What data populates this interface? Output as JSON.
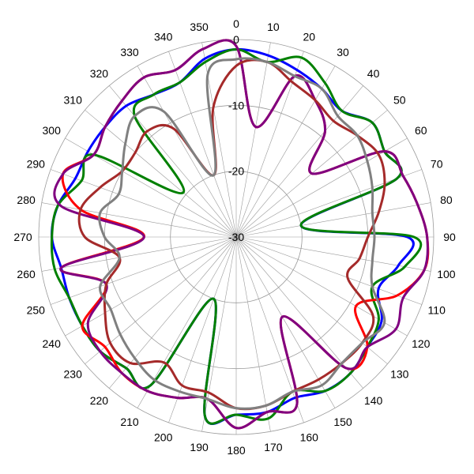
{
  "chart_data": {
    "type": "line",
    "subtype": "polar",
    "title": "",
    "angle_direction": "clockwise",
    "angle_zero": "top",
    "angle_ticks": [
      0,
      10,
      20,
      30,
      40,
      50,
      60,
      70,
      80,
      90,
      100,
      110,
      120,
      130,
      140,
      150,
      160,
      170,
      180,
      190,
      200,
      210,
      220,
      230,
      240,
      250,
      260,
      270,
      280,
      290,
      300,
      310,
      320,
      330,
      340,
      350
    ],
    "angle_tick_labels": [
      "0",
      "10",
      "20",
      "30",
      "40",
      "50",
      "60",
      "70",
      "80",
      "90",
      "100",
      "110",
      "120",
      "130",
      "140",
      "150",
      "160",
      "170",
      "180",
      "190",
      "200",
      "210",
      "220",
      "230",
      "240",
      "250",
      "260",
      "270",
      "280",
      "290",
      "300",
      "310",
      "320",
      "330",
      "340",
      "350"
    ],
    "radial_range": [
      -30,
      0
    ],
    "radial_ticks": [
      -30,
      -20,
      -10,
      0
    ],
    "radial_tick_labels": [
      "-30",
      "-20",
      "-10",
      "0"
    ],
    "grid": true,
    "series": [
      {
        "color": "#0000ff",
        "angles": [
          0,
          10,
          20,
          30,
          40,
          50,
          60,
          70,
          80,
          90,
          100,
          110,
          120,
          130,
          140,
          150,
          160,
          170,
          180,
          190,
          200,
          210,
          220,
          230,
          240,
          250,
          260,
          270,
          280,
          290,
          300,
          310,
          320,
          330,
          340,
          350
        ],
        "values": [
          -1.5,
          -2,
          -3,
          -4,
          -5,
          -3,
          -4,
          -4,
          -20,
          -4,
          -5,
          -7,
          -4.5,
          -4,
          -3,
          -3,
          -4,
          -3,
          -3,
          -2.5,
          -20,
          -4,
          -4,
          -3,
          -3,
          -3,
          -3,
          -2,
          -2.5,
          -4,
          -4,
          -4,
          -4,
          -5,
          -5,
          -2.5
        ]
      },
      {
        "color": "#008000",
        "angles": [
          0,
          10,
          20,
          30,
          40,
          50,
          60,
          70,
          80,
          90,
          100,
          110,
          120,
          130,
          140,
          150,
          160,
          170,
          180,
          190,
          200,
          210,
          220,
          230,
          240,
          250,
          260,
          270,
          280,
          290,
          300,
          310,
          320,
          330,
          340,
          350
        ],
        "values": [
          -1.5,
          -3,
          -1,
          -3,
          -5,
          -3,
          -4,
          -4,
          -20,
          -3,
          -4,
          -8,
          -5,
          -4,
          -3,
          -3,
          -5,
          -2,
          -3,
          -2.5,
          -20,
          -4,
          -4,
          -3,
          -3,
          -3,
          -2,
          -2,
          -2.5,
          -5,
          -5,
          -19.5,
          -6,
          -5,
          -5,
          -3
        ]
      },
      {
        "color": "#ff0000",
        "angles": [
          0,
          10,
          20,
          30,
          40,
          50,
          60,
          70,
          80,
          90,
          100,
          110,
          120,
          130,
          140,
          150,
          160,
          170,
          180,
          190,
          200,
          210,
          220,
          230,
          240,
          250,
          260,
          270,
          280,
          290,
          300,
          310,
          320,
          330,
          340,
          350
        ],
        "values": [
          -1,
          -13,
          -4,
          -6,
          -9,
          -15,
          -4,
          -3,
          -2,
          -1,
          -1,
          -4,
          -9,
          -4,
          -4,
          -16,
          -3,
          -3,
          -1,
          -5,
          -4,
          -3,
          -3,
          -4,
          -3,
          -9,
          -3,
          -16,
          -6,
          -2,
          -5,
          -4,
          -3,
          -2,
          -3,
          -1
        ]
      },
      {
        "color": "#800080",
        "angles": [
          0,
          10,
          20,
          30,
          40,
          50,
          60,
          70,
          80,
          90,
          100,
          110,
          120,
          130,
          140,
          150,
          160,
          170,
          180,
          190,
          200,
          210,
          220,
          230,
          240,
          250,
          260,
          270,
          280,
          290,
          300,
          310,
          320,
          330,
          340,
          350
        ],
        "values": [
          -1,
          -13,
          -4,
          -6,
          -9,
          -15,
          -4,
          -3,
          -2,
          -1,
          -1,
          -3,
          -2,
          -4,
          -4,
          -16,
          -3,
          -3,
          -1,
          -5,
          -4,
          -3,
          -3,
          -3,
          -4,
          -9,
          -3,
          -16,
          -3,
          -2,
          -5,
          -4,
          -3,
          -2,
          -3,
          -1
        ]
      },
      {
        "color": "#a52a2a",
        "angles": [
          0,
          10,
          20,
          30,
          40,
          50,
          60,
          70,
          80,
          90,
          100,
          110,
          120,
          130,
          140,
          150,
          160,
          170,
          180,
          190,
          200,
          210,
          220,
          230,
          240,
          250,
          260,
          270,
          280,
          290,
          300,
          310,
          320,
          330,
          340,
          350
        ],
        "values": [
          -4,
          -3,
          -5,
          -6,
          -7,
          -6,
          -5,
          -6,
          -8,
          -10,
          -11,
          -12,
          -6,
          -5,
          -5,
          -5,
          -5,
          -4,
          -4,
          -6,
          -6,
          -8,
          -5,
          -5,
          -7,
          -9,
          -12,
          -7,
          -6,
          -8,
          -10,
          -10,
          -9,
          -11,
          -20,
          -10
        ]
      },
      {
        "color": "#808080",
        "angles": [
          0,
          10,
          20,
          30,
          40,
          50,
          60,
          70,
          80,
          90,
          100,
          110,
          120,
          130,
          140,
          150,
          160,
          170,
          180,
          190,
          200,
          210,
          220,
          230,
          240,
          250,
          260,
          270,
          280,
          290,
          300,
          310,
          320,
          330,
          340,
          350
        ],
        "values": [
          -3,
          -3,
          -4,
          -4,
          -6,
          -6,
          -7,
          -8,
          -9,
          -9,
          -9,
          -8,
          -4,
          -5,
          -5,
          -4,
          -5,
          -4,
          -4,
          -5,
          -5,
          -5,
          -6,
          -7,
          -8,
          -8,
          -12,
          -10,
          -9,
          -11,
          -10,
          -8,
          -6,
          -8,
          -20,
          -5
        ]
      }
    ]
  }
}
